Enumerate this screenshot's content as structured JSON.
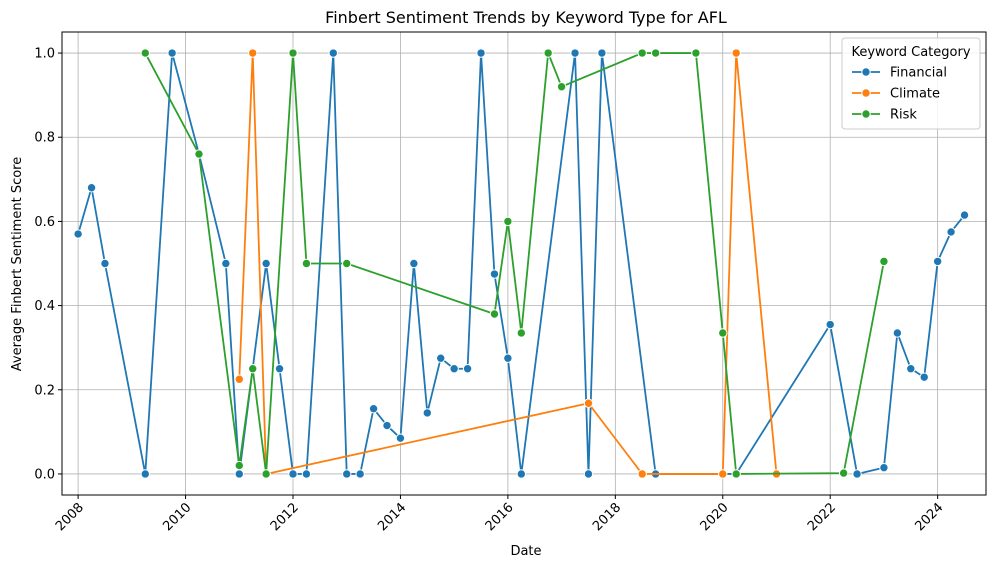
{
  "chart_data": {
    "type": "line",
    "title": "Finbert Sentiment Trends by Keyword Type for AFL",
    "xlabel": "Date",
    "ylabel": "Average Finbert Sentiment Score",
    "xlim": [
      2007.7,
      2024.9
    ],
    "ylim": [
      -0.05,
      1.05
    ],
    "x_ticks": [
      2008,
      2010,
      2012,
      2014,
      2016,
      2018,
      2020,
      2022,
      2024
    ],
    "y_ticks": [
      0.0,
      0.2,
      0.4,
      0.6,
      0.8,
      1.0
    ],
    "y_tick_labels": [
      "0.0",
      "0.2",
      "0.4",
      "0.6",
      "0.8",
      "1.0"
    ],
    "grid": true,
    "legend": {
      "title": "Keyword Category",
      "placement": "top-right"
    },
    "series": [
      {
        "name": "Financial",
        "color": "#1f77b4",
        "points": [
          [
            2008.0,
            0.57
          ],
          [
            2008.25,
            0.68
          ],
          [
            2008.5,
            0.5
          ],
          [
            2009.25,
            0.0
          ],
          [
            2009.75,
            1.0
          ],
          [
            2010.25,
            0.76
          ],
          [
            2010.75,
            0.5
          ],
          [
            2011.0,
            0.0
          ],
          [
            2011.5,
            0.5
          ],
          [
            2011.75,
            0.25
          ],
          [
            2012.0,
            0.0
          ],
          [
            2012.25,
            0.0
          ],
          [
            2012.75,
            1.0
          ],
          [
            2013.0,
            0.0
          ],
          [
            2013.25,
            0.0
          ],
          [
            2013.5,
            0.155
          ],
          [
            2013.75,
            0.115
          ],
          [
            2014.0,
            0.085
          ],
          [
            2014.25,
            0.5
          ],
          [
            2014.5,
            0.145
          ],
          [
            2014.75,
            0.275
          ],
          [
            2015.0,
            0.25
          ],
          [
            2015.25,
            0.25
          ],
          [
            2015.5,
            1.0
          ],
          [
            2015.75,
            0.475
          ],
          [
            2016.0,
            0.275
          ],
          [
            2016.25,
            0.0
          ],
          [
            2017.25,
            1.0
          ],
          [
            2017.5,
            0.0
          ],
          [
            2017.75,
            1.0
          ],
          [
            2018.75,
            0.0
          ],
          [
            2020.25,
            0.0
          ],
          [
            2022.0,
            0.355
          ],
          [
            2022.5,
            0.0
          ],
          [
            2023.0,
            0.015
          ],
          [
            2023.25,
            0.335
          ],
          [
            2023.5,
            0.25
          ],
          [
            2023.75,
            0.23
          ],
          [
            2024.0,
            0.505
          ],
          [
            2024.25,
            0.575
          ],
          [
            2024.5,
            0.615
          ]
        ]
      },
      {
        "name": "Climate",
        "color": "#ff7f0e",
        "points": [
          [
            2011.0,
            0.225
          ],
          [
            2011.25,
            1.0
          ],
          [
            2011.5,
            0.0
          ],
          [
            2017.5,
            0.168
          ],
          [
            2018.5,
            0.0
          ],
          [
            2020.0,
            0.0
          ],
          [
            2020.25,
            1.0
          ],
          [
            2021.0,
            0.0
          ]
        ]
      },
      {
        "name": "Risk",
        "color": "#2ca02c",
        "points": [
          [
            2009.25,
            1.0
          ],
          [
            2010.25,
            0.76
          ],
          [
            2011.0,
            0.02
          ],
          [
            2011.25,
            0.25
          ],
          [
            2011.5,
            0.0
          ],
          [
            2012.0,
            1.0
          ],
          [
            2012.25,
            0.5
          ],
          [
            2013.0,
            0.5
          ],
          [
            2015.75,
            0.38
          ],
          [
            2016.0,
            0.6
          ],
          [
            2016.25,
            0.335
          ],
          [
            2016.75,
            1.0
          ],
          [
            2017.0,
            0.92
          ],
          [
            2018.5,
            1.0
          ],
          [
            2018.75,
            1.0
          ],
          [
            2019.5,
            1.0
          ],
          [
            2020.0,
            0.335
          ],
          [
            2020.25,
            0.0
          ],
          [
            2022.25,
            0.002
          ],
          [
            2023.0,
            0.505
          ]
        ]
      }
    ]
  }
}
